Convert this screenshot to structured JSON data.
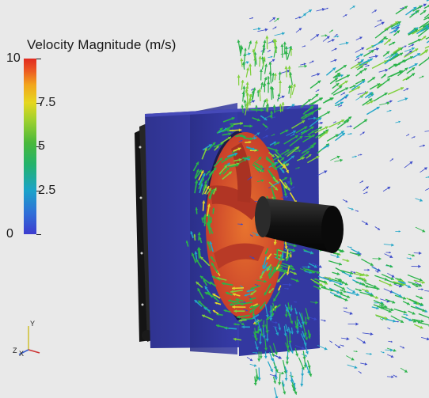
{
  "legend": {
    "title": "Velocity Magnitude (m/s)",
    "ticks": [
      {
        "label": "10",
        "value": 10
      },
      {
        "label": "7.5",
        "value": 7.5
      },
      {
        "label": "5",
        "value": 5
      },
      {
        "label": "2.5",
        "value": 2.5
      },
      {
        "label": "0",
        "value": 0
      }
    ]
  },
  "axes": {
    "y": "Y",
    "z": "Z",
    "x": "X"
  },
  "colors": {
    "background": "#e9e9e9",
    "housing": "#3b3fa8",
    "fan_blades": "#d9542c",
    "shaft": "#1a1a1a",
    "arrows": [
      "#2bb34a",
      "#7fd03a",
      "#22a6c8",
      "#3a49c9",
      "#e4d82a"
    ]
  }
}
